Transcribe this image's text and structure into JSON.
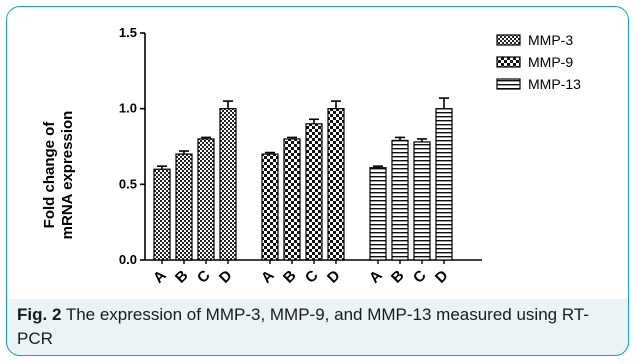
{
  "figure": {
    "caption_label": "Fig. 2",
    "caption_text": " The expression of MMP-3, MMP-9, and MMP-13 measured using RT-PCR"
  },
  "chart_data": {
    "type": "bar",
    "ylabel_line1": "Fold change of",
    "ylabel_line2": "mRNA expression",
    "ylim": [
      0.0,
      1.5
    ],
    "yticks": [
      "0.0",
      "0.5",
      "1.0",
      "1.5"
    ],
    "ytick_values": [
      0.0,
      0.5,
      1.0,
      1.5
    ],
    "categories": [
      "A",
      "B",
      "C",
      "D"
    ],
    "legend_position": "top-right",
    "series": [
      {
        "name": "MMP-3",
        "pattern": "checker",
        "values": [
          0.6,
          0.7,
          0.8,
          1.0
        ],
        "errors": [
          0.02,
          0.02,
          0.01,
          0.05
        ]
      },
      {
        "name": "MMP-9",
        "pattern": "diamond",
        "values": [
          0.7,
          0.8,
          0.9,
          1.0
        ],
        "errors": [
          0.01,
          0.01,
          0.03,
          0.05
        ]
      },
      {
        "name": "MMP-13",
        "pattern": "hlines",
        "values": [
          0.61,
          0.79,
          0.78,
          1.0
        ],
        "errors": [
          0.01,
          0.02,
          0.02,
          0.07
        ]
      }
    ]
  }
}
